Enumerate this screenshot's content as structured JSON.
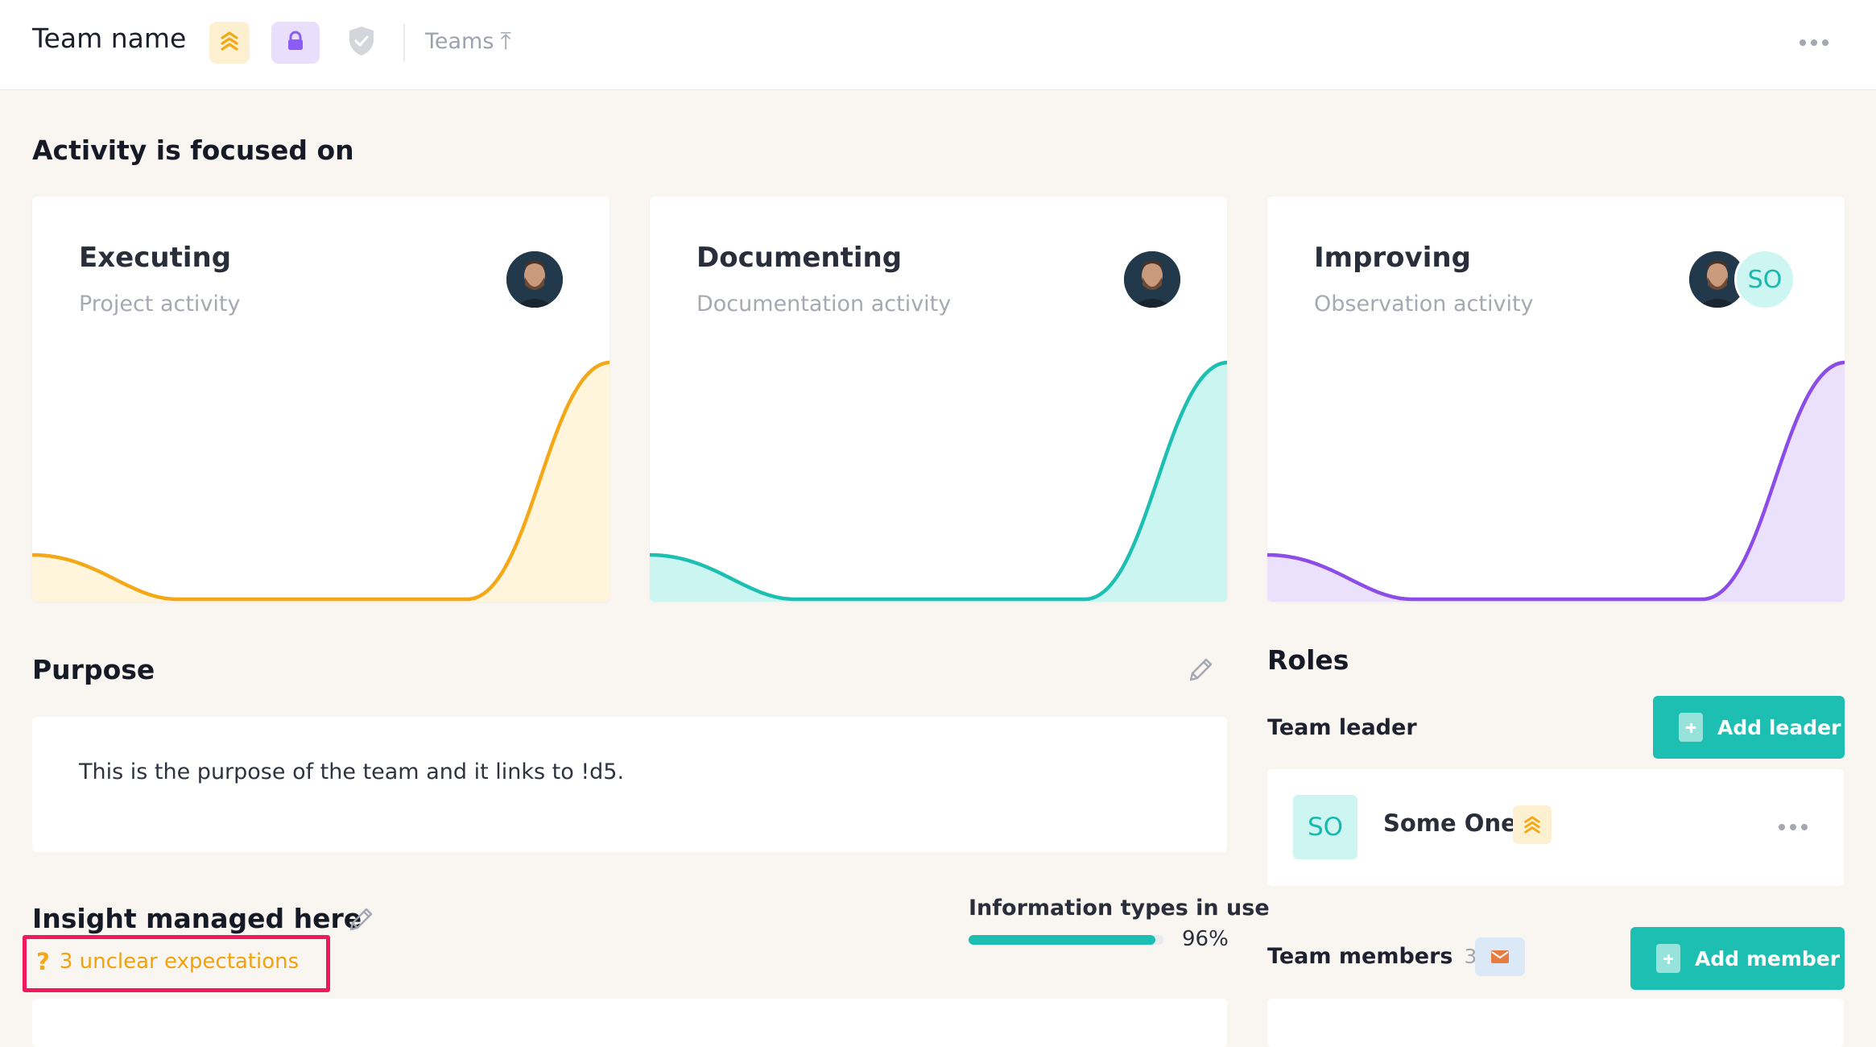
{
  "header": {
    "team_name": "Team name",
    "teams_link": "Teams",
    "teams_arrow": "⤒",
    "icons": [
      "rank-chevrons-icon",
      "lock-icon",
      "shield-check-icon",
      "more-icon"
    ],
    "colors": {
      "rank": "#f4a818",
      "lock": "#8b5cf6",
      "shield": "#c8cbd1"
    }
  },
  "activity": {
    "title": "Activity is focused on",
    "cards": [
      {
        "title": "Executing",
        "subtitle": "Project activity",
        "color": "#f4a818",
        "fill": "#fff4dc",
        "avatars": [
          "photo"
        ]
      },
      {
        "title": "Documenting",
        "subtitle": "Documentation activity",
        "color": "#1cbfb1",
        "fill": "#cbf5f1",
        "avatars": [
          "photo"
        ]
      },
      {
        "title": "Improving",
        "subtitle": "Observation activity",
        "color": "#8b4ce8",
        "fill": "#ece1fc",
        "avatars": [
          "photo",
          "SO"
        ]
      }
    ]
  },
  "purpose": {
    "title": "Purpose",
    "text": "This is the purpose of the team and it links to !d5."
  },
  "insight": {
    "title": "Insight managed here",
    "unclear_icon": "?",
    "unclear_text": "3 unclear expectations",
    "info_types_label": "Information types in use",
    "info_types_percent": "96%",
    "info_types_fraction": 0.96
  },
  "roles": {
    "title": "Roles",
    "leader_label": "Team leader",
    "add_leader_label": "Add leader",
    "leader": {
      "initials": "SO",
      "name": "Some One"
    },
    "members_label": "Team members",
    "members_count": "3",
    "add_member_label": "Add member"
  },
  "accent_color": "#1cbfb1"
}
